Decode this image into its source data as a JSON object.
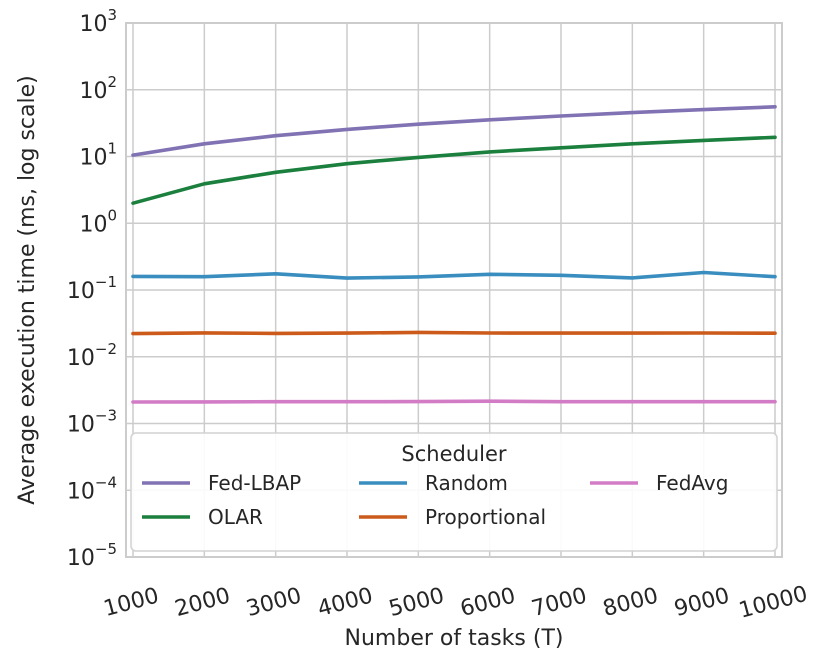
{
  "chart_data": {
    "type": "line",
    "title": "",
    "xlabel": "Number of tasks (T)",
    "ylabel": "Average execution time (ms, log scale)",
    "yscale": "log",
    "ylim": [
      1e-05,
      1000
    ],
    "x": [
      1000,
      2000,
      3000,
      4000,
      5000,
      6000,
      7000,
      8000,
      9000,
      10000
    ],
    "x_tick_labels": [
      "1000",
      "2000",
      "3000",
      "4000",
      "5000",
      "6000",
      "7000",
      "8000",
      "9000",
      "10000"
    ],
    "y_ticks": [
      {
        "value": 1e-05,
        "base": "10",
        "exp": "−5"
      },
      {
        "value": 0.0001,
        "base": "10",
        "exp": "−4"
      },
      {
        "value": 0.001,
        "base": "10",
        "exp": "−3"
      },
      {
        "value": 0.01,
        "base": "10",
        "exp": "−2"
      },
      {
        "value": 0.1,
        "base": "10",
        "exp": "−1"
      },
      {
        "value": 1,
        "base": "10",
        "exp": "0"
      },
      {
        "value": 10,
        "base": "10",
        "exp": "1"
      },
      {
        "value": 100,
        "base": "10",
        "exp": "2"
      },
      {
        "value": 1000,
        "base": "10",
        "exp": "3"
      }
    ],
    "grid": true,
    "legend": {
      "title": "Scheduler",
      "placement": "lower-center",
      "ncol": 3
    },
    "series": [
      {
        "name": "Fed-LBAP",
        "color": "#8172b3",
        "values": [
          10.5,
          15.5,
          20.5,
          25.5,
          30.5,
          35.5,
          40.5,
          45.5,
          50.5,
          55.5
        ]
      },
      {
        "name": "OLAR",
        "color": "#1b7f3e",
        "values": [
          2.0,
          3.9,
          5.8,
          7.8,
          9.7,
          11.7,
          13.5,
          15.5,
          17.4,
          19.4
        ]
      },
      {
        "name": "Random",
        "color": "#3a8ebf",
        "values": [
          0.16,
          0.158,
          0.175,
          0.151,
          0.157,
          0.172,
          0.166,
          0.152,
          0.183,
          0.158
        ]
      },
      {
        "name": "Proportional",
        "color": "#cc5a1a",
        "values": [
          0.0222,
          0.0228,
          0.0224,
          0.0226,
          0.0232,
          0.0227,
          0.0226,
          0.0226,
          0.0227,
          0.0225
        ]
      },
      {
        "name": "FedAvg",
        "color": "#d27cc6",
        "values": [
          0.0021,
          0.00211,
          0.00212,
          0.00212,
          0.00213,
          0.00216,
          0.00212,
          0.00212,
          0.00212,
          0.00212
        ]
      }
    ]
  }
}
